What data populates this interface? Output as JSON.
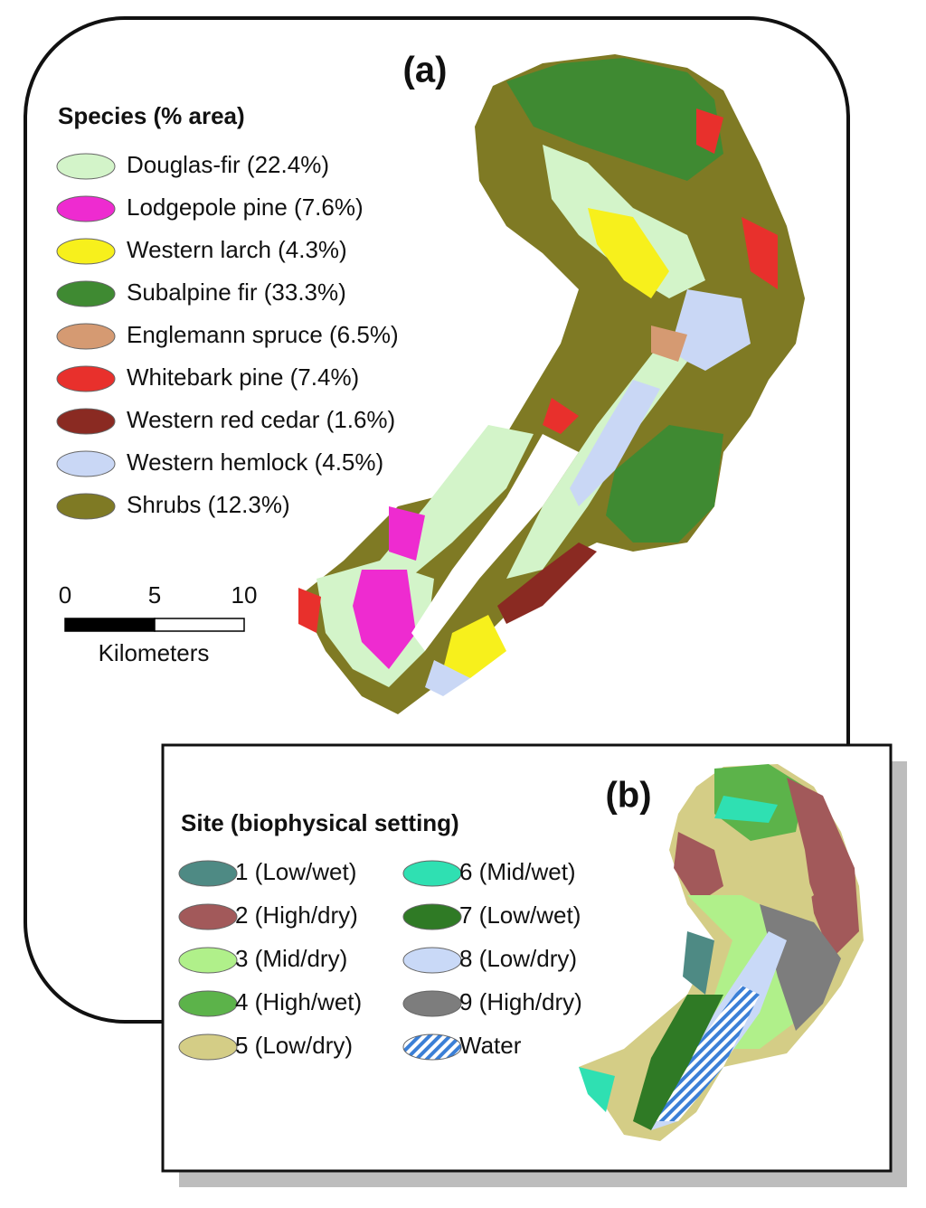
{
  "panel_a": {
    "label": "(a)",
    "legend_title": "Species (% area)",
    "legend": [
      {
        "label": "Douglas-fir (22.4%)",
        "color": "#d3f4c9"
      },
      {
        "label": "Lodgepole pine (7.6%)",
        "color": "#ee2bd0"
      },
      {
        "label": "Western larch (4.3%)",
        "color": "#f7f01c"
      },
      {
        "label": "Subalpine fir (33.3%)",
        "color": "#3f8a32"
      },
      {
        "label": "Englemann spruce (6.5%)",
        "color": "#d59a72"
      },
      {
        "label": "Whitebark pine (7.4%)",
        "color": "#e8302c"
      },
      {
        "label": "Western red cedar (1.6%)",
        "color": "#8a2a22"
      },
      {
        "label": "Western hemlock (4.5%)",
        "color": "#c9d7f5"
      },
      {
        "label": "Shrubs (12.3%)",
        "color": "#7f7a24"
      }
    ],
    "scale_bar": {
      "ticks": [
        0,
        5,
        10
      ],
      "unit": "Kilometers"
    }
  },
  "panel_b": {
    "label": "(b)",
    "legend_title": "Site (biophysical setting)",
    "legend": [
      {
        "label": "1 (Low/wet)",
        "color": "#4e8a84"
      },
      {
        "label": "2 (High/dry)",
        "color": "#a2595a"
      },
      {
        "label": "3 (Mid/dry)",
        "color": "#b0f08a"
      },
      {
        "label": "4 (High/wet)",
        "color": "#5cb34a"
      },
      {
        "label": "5 (Low/dry)",
        "color": "#d4cd86"
      },
      {
        "label": "6 (Mid/wet)",
        "color": "#2fe0b2"
      },
      {
        "label": "7 (Low/wet)",
        "color": "#2f7a25"
      },
      {
        "label": "8 (Low/dry)",
        "color": "#c9d9f7"
      },
      {
        "label": "9 (High/dry)",
        "color": "#7d7d7d"
      },
      {
        "label": "Water",
        "color": "#3b7fd6",
        "pattern": "hatch"
      }
    ]
  }
}
